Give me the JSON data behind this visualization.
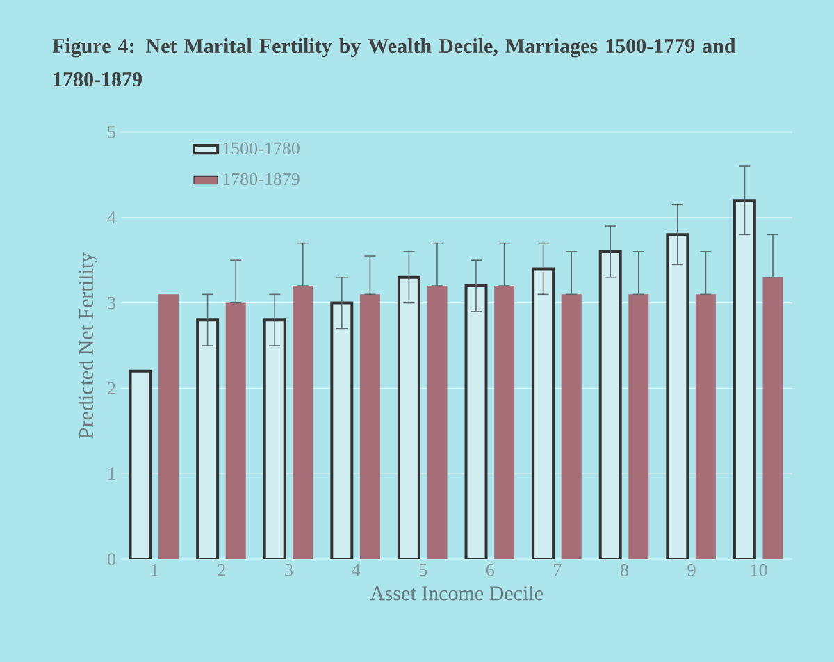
{
  "chart_data": {
    "type": "bar",
    "title": "Figure 4:  Net Marital Fertility by Wealth Decile, Marriages 1500-1779 and 1780-1879",
    "xlabel": "Asset Income Decile",
    "ylabel": "Predicted Net Fertility",
    "categories": [
      "1",
      "2",
      "3",
      "4",
      "5",
      "6",
      "7",
      "8",
      "9",
      "10"
    ],
    "series": [
      {
        "name": "1500-1780",
        "color": "#d1eef2",
        "values": [
          2.2,
          2.8,
          2.8,
          3.0,
          3.3,
          3.2,
          3.4,
          3.6,
          3.8,
          4.2
        ],
        "errors": [
          null,
          0.3,
          0.3,
          0.3,
          0.3,
          0.3,
          0.3,
          0.3,
          0.35,
          0.4
        ]
      },
      {
        "name": "1780-1879",
        "color": "#a86e78",
        "values": [
          3.1,
          3.0,
          3.2,
          3.1,
          3.2,
          3.2,
          3.1,
          3.1,
          3.1,
          3.3
        ],
        "errors": [
          null,
          [
            3.0,
            3.5
          ],
          [
            3.2,
            3.7
          ],
          [
            3.1,
            3.55
          ],
          [
            3.2,
            3.7
          ],
          [
            3.2,
            3.7
          ],
          [
            3.1,
            3.6
          ],
          [
            3.1,
            3.6
          ],
          [
            3.1,
            3.6
          ],
          [
            3.3,
            3.8
          ]
        ]
      }
    ],
    "ylim": [
      0,
      5
    ],
    "yticks": [
      0,
      1,
      2,
      3,
      4,
      5
    ],
    "grid": "y",
    "legend": "top left"
  }
}
